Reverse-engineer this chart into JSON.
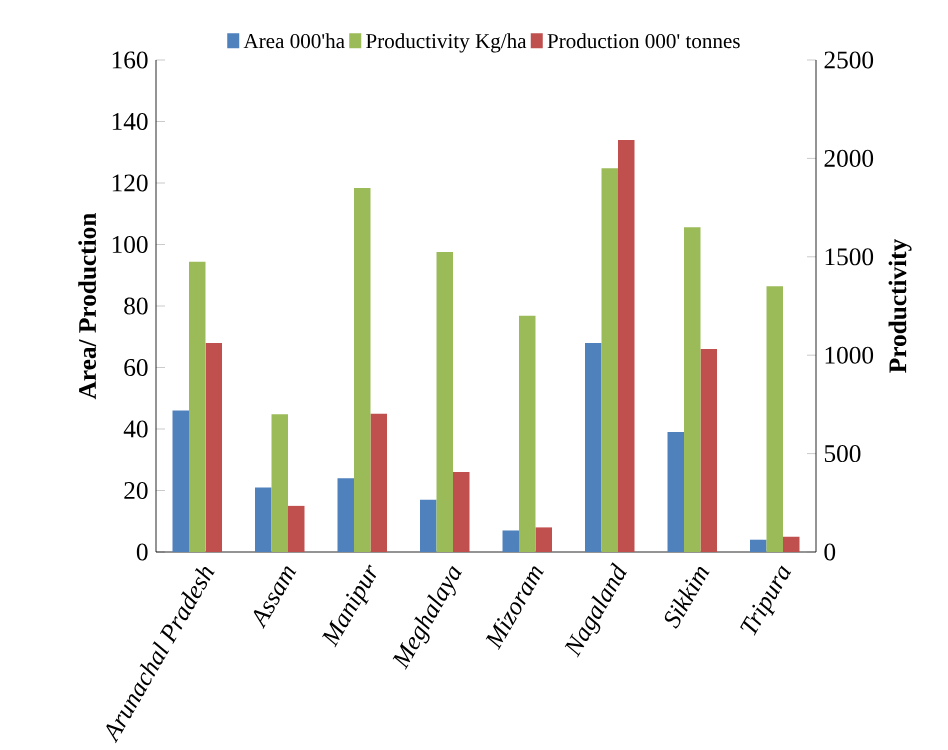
{
  "chart_data": {
    "type": "bar",
    "xlabel": null,
    "ylabel": "Area/ Production",
    "y2label": "Productivity",
    "categories": [
      "Arunachal Pradesh",
      "Assam",
      "Manipur",
      "Meghalaya",
      "Mizoram",
      "Nagaland",
      "Sikkim",
      "Tripura"
    ],
    "series": [
      {
        "name": "Area 000'ha",
        "color": "#4f81bd",
        "values": [
          46,
          21,
          24,
          17,
          7,
          68,
          39,
          4
        ]
      },
      {
        "name": "Productivity Kg/ha",
        "color": "#9bbb59",
        "axis": "y2",
        "values": [
          1475,
          700,
          1850,
          1525,
          1200,
          1950,
          1650,
          1350
        ]
      },
      {
        "name": "Production 000' tonnes",
        "color": "#c0504d",
        "values": [
          68,
          15,
          45,
          26,
          8,
          134,
          66,
          5
        ]
      }
    ],
    "ylim": [
      0,
      160
    ],
    "yticks": [
      0,
      20,
      40,
      60,
      80,
      100,
      120,
      140,
      160
    ],
    "y2lim": [
      0,
      2500
    ],
    "y2ticks": [
      0,
      500,
      1000,
      1500,
      2000,
      2500
    ],
    "legend": "top",
    "grid": false
  }
}
